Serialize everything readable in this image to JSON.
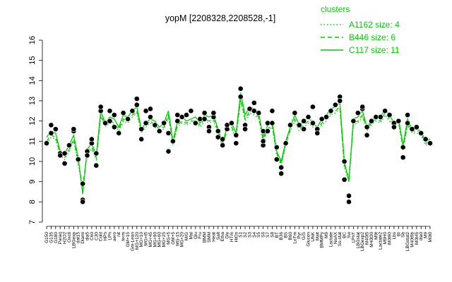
{
  "chart_data": {
    "type": "line",
    "title": "yopM [2208328,2208528,-1]",
    "xlabel": "",
    "ylabel": "",
    "ylim": [
      7,
      16
    ],
    "yticks": [
      7,
      8,
      9,
      10,
      11,
      12,
      13,
      14,
      15,
      16
    ],
    "grid": false,
    "legend": {
      "title": "clusters",
      "placement": "top-right",
      "entries": [
        {
          "label": "A1162 size: 4",
          "style": "dotted"
        },
        {
          "label": "B446 size: 6",
          "style": "dashed"
        },
        {
          "label": "C117 size: 11",
          "style": "solid"
        }
      ]
    },
    "colors": {
      "series": "#00cc00",
      "points": "#000000",
      "legend_text": "#00cc00"
    },
    "x_tick_labels": [
      "G150",
      "G135",
      "G180",
      "Paraq",
      "H2O2",
      "Oxctl",
      "LBGexp",
      "dat15",
      "Diami",
      "dia5",
      "C60",
      "C30",
      "Cold",
      "HPh",
      "LPh",
      "aero",
      "nit",
      "ferm",
      "GM+15",
      "Gm-Lean",
      "MG+120",
      "MG+10",
      "MG+t5",
      "MG+45",
      "MG+90",
      "MG+60",
      "MG+25",
      "MG+5",
      "GM+5",
      "MG-15",
      "MG+20",
      "M/G",
      "Mal",
      "Glu",
      "Fru",
      "BMM",
      "SMM",
      "Heat",
      "Salt",
      "Etha",
      "Gly",
      "HTm",
      "HiOs",
      "S1",
      "S2",
      "S3",
      "S4",
      "S5",
      "S6",
      "S7",
      "S8",
      "BT",
      "B36",
      "BS",
      "B60",
      "LoTm",
      "Pyr",
      "G/S",
      "Glucon",
      "UNK",
      "Malt",
      "BMMPy",
      "M9",
      "Lactate",
      "NoAX",
      "Ss-stat",
      "BC",
      "Sw",
      "LPhT",
      "LBGstat",
      "LBGexp2",
      "M40t5",
      "M40t30",
      "M9t",
      "Lactate2",
      "M9H0",
      "M0t90",
      "Lbs",
      "BI",
      "Sb",
      "LBGstat2",
      "M40t5b",
      "M0t45",
      "dia0",
      "M9",
      "M0t0"
    ],
    "series": [
      {
        "style": "solid",
        "values": [
          11.2,
          11.5,
          11.4,
          10.5,
          10.4,
          10.8,
          11.3,
          10.2,
          8.4,
          10.6,
          10.9,
          10.3,
          12.5,
          11.9,
          12.2,
          12.1,
          11.7,
          12.3,
          12.2,
          12.5,
          12.7,
          11.6,
          11.9,
          12.1,
          12.0,
          11.7,
          11.9,
          12.5,
          11.0,
          12.0,
          12.2,
          12.0,
          12.1,
          12.2,
          11.9,
          12.3,
          12.2,
          12.3,
          11.6,
          10.9,
          11.7,
          11.9,
          11.4,
          13.4,
          12.3,
          12.7,
          12.6,
          12.4,
          11.2,
          11.8,
          12.0,
          10.5,
          10.0,
          11.0,
          11.7,
          12.3,
          11.8,
          12.0,
          12.2,
          11.9,
          11.7,
          12.1,
          12.3,
          12.6,
          12.7,
          12.9,
          10.0,
          9.0,
          12.1,
          12.2,
          12.5,
          11.7,
          12.0,
          12.3,
          12.2,
          12.6,
          12.3,
          11.9,
          12.1,
          10.8,
          12.1,
          11.6,
          11.6,
          11.5,
          11.0,
          11.1
        ]
      },
      {
        "style": "dashed",
        "values": [
          11.0,
          11.3,
          11.2,
          10.4,
          10.2,
          10.6,
          11.1,
          10.0,
          8.7,
          10.5,
          10.7,
          10.2,
          12.3,
          11.8,
          12.0,
          11.9,
          11.6,
          12.1,
          12.0,
          12.3,
          12.5,
          11.5,
          11.8,
          12.0,
          11.8,
          11.6,
          11.7,
          12.3,
          10.9,
          11.8,
          12.0,
          11.9,
          12.0,
          12.0,
          11.8,
          12.1,
          12.0,
          12.1,
          11.5,
          10.8,
          11.6,
          11.7,
          11.3,
          13.1,
          12.1,
          12.5,
          12.4,
          12.2,
          11.1,
          11.6,
          11.8,
          10.4,
          9.9,
          10.9,
          11.6,
          12.1,
          11.6,
          11.8,
          12.0,
          11.8,
          11.6,
          11.9,
          12.1,
          12.4,
          12.5,
          12.7,
          9.8,
          9.2,
          11.9,
          12.0,
          12.3,
          11.6,
          11.9,
          12.1,
          12.0,
          12.4,
          12.1,
          11.8,
          12.0,
          10.7,
          11.9,
          11.5,
          11.5,
          11.4,
          10.9,
          11.0
        ]
      },
      {
        "style": "dotted",
        "values": [
          10.9,
          11.2,
          11.1,
          10.3,
          10.1,
          10.5,
          11.0,
          9.9,
          8.6,
          10.4,
          10.6,
          10.1,
          12.2,
          11.7,
          11.9,
          11.8,
          11.5,
          12.0,
          11.9,
          12.2,
          12.4,
          11.4,
          11.7,
          11.9,
          11.7,
          11.5,
          11.6,
          12.2,
          10.8,
          11.7,
          11.9,
          11.8,
          11.9,
          11.9,
          11.7,
          12.0,
          11.9,
          12.0,
          11.4,
          10.7,
          11.5,
          11.6,
          11.2,
          13.0,
          12.0,
          12.4,
          12.3,
          12.1,
          11.0,
          11.5,
          11.7,
          10.3,
          9.8,
          10.8,
          11.5,
          12.0,
          11.5,
          11.7,
          11.9,
          11.7,
          11.5,
          11.8,
          12.0,
          12.3,
          12.4,
          12.6,
          9.7,
          9.0,
          11.8,
          11.9,
          12.2,
          11.5,
          11.8,
          12.0,
          11.9,
          12.3,
          12.0,
          11.7,
          11.9,
          10.6,
          11.8,
          11.4,
          11.4,
          11.3,
          10.8,
          10.9
        ]
      }
    ],
    "points": [
      [
        0,
        10.9
      ],
      [
        1,
        11.4
      ],
      [
        1,
        11.8
      ],
      [
        2,
        11.6
      ],
      [
        3,
        10.4
      ],
      [
        3,
        10.3
      ],
      [
        4,
        9.9
      ],
      [
        4,
        10.4
      ],
      [
        5,
        10.8
      ],
      [
        6,
        11.5
      ],
      [
        6,
        11.6
      ],
      [
        7,
        10.1
      ],
      [
        8,
        8.9
      ],
      [
        8,
        8.1
      ],
      [
        8,
        8.0
      ],
      [
        9,
        10.5
      ],
      [
        9,
        10.3
      ],
      [
        10,
        10.9
      ],
      [
        10,
        11.1
      ],
      [
        11,
        10.4
      ],
      [
        11,
        9.8
      ],
      [
        12,
        12.5
      ],
      [
        12,
        12.7
      ],
      [
        13,
        11.9
      ],
      [
        14,
        12.5
      ],
      [
        14,
        12.0
      ],
      [
        15,
        12.3
      ],
      [
        15,
        11.7
      ],
      [
        16,
        11.4
      ],
      [
        17,
        12.4
      ],
      [
        18,
        12.1
      ],
      [
        19,
        12.5
      ],
      [
        20,
        13.1
      ],
      [
        20,
        12.8
      ],
      [
        21,
        11.6
      ],
      [
        21,
        11.1
      ],
      [
        22,
        11.9
      ],
      [
        22,
        12.5
      ],
      [
        23,
        12.6
      ],
      [
        23,
        12.2
      ],
      [
        24,
        11.8
      ],
      [
        25,
        11.5
      ],
      [
        26,
        11.9
      ],
      [
        27,
        11.4
      ],
      [
        27,
        10.5
      ],
      [
        28,
        11.0
      ],
      [
        29,
        12.0
      ],
      [
        29,
        12.3
      ],
      [
        30,
        12.2
      ],
      [
        31,
        12.3
      ],
      [
        32,
        12.5
      ],
      [
        33,
        11.9
      ],
      [
        34,
        12.1
      ],
      [
        35,
        12.4
      ],
      [
        35,
        12.1
      ],
      [
        36,
        11.7
      ],
      [
        36,
        11.5
      ],
      [
        37,
        12.2
      ],
      [
        37,
        12.4
      ],
      [
        38,
        11.5
      ],
      [
        38,
        11.2
      ],
      [
        39,
        11.1
      ],
      [
        39,
        10.8
      ],
      [
        40,
        11.6
      ],
      [
        40,
        11.8
      ],
      [
        41,
        11.9
      ],
      [
        42,
        11.3
      ],
      [
        42,
        10.9
      ],
      [
        43,
        13.6
      ],
      [
        43,
        13.2
      ],
      [
        44,
        11.8
      ],
      [
        44,
        11.6
      ],
      [
        45,
        12.6
      ],
      [
        46,
        12.9
      ],
      [
        46,
        12.5
      ],
      [
        47,
        12.4
      ],
      [
        48,
        11.5
      ],
      [
        48,
        10.8
      ],
      [
        48,
        11.0
      ],
      [
        49,
        11.9
      ],
      [
        49,
        11.5
      ],
      [
        50,
        12.5
      ],
      [
        50,
        11.9
      ],
      [
        51,
        10.7
      ],
      [
        51,
        10.1
      ],
      [
        52,
        9.4
      ],
      [
        52,
        9.7
      ],
      [
        53,
        10.9
      ],
      [
        54,
        11.8
      ],
      [
        55,
        12.4
      ],
      [
        56,
        11.8
      ],
      [
        57,
        12.0
      ],
      [
        57,
        11.6
      ],
      [
        58,
        12.2
      ],
      [
        59,
        11.9
      ],
      [
        59,
        12.7
      ],
      [
        60,
        11.6
      ],
      [
        60,
        11.4
      ],
      [
        61,
        12.1
      ],
      [
        62,
        12.2
      ],
      [
        63,
        12.5
      ],
      [
        64,
        12.8
      ],
      [
        65,
        13.2
      ],
      [
        65,
        13.0
      ],
      [
        66,
        10.0
      ],
      [
        66,
        9.1
      ],
      [
        67,
        8.3
      ],
      [
        67,
        8.0
      ],
      [
        68,
        12.0
      ],
      [
        69,
        12.4
      ],
      [
        70,
        12.6
      ],
      [
        70,
        12.7
      ],
      [
        71,
        11.7
      ],
      [
        71,
        11.3
      ],
      [
        72,
        12.0
      ],
      [
        73,
        12.2
      ],
      [
        74,
        12.2
      ],
      [
        75,
        12.5
      ],
      [
        76,
        12.3
      ],
      [
        77,
        11.9
      ],
      [
        77,
        11.7
      ],
      [
        78,
        12.0
      ],
      [
        79,
        10.2
      ],
      [
        79,
        10.7
      ],
      [
        80,
        12.3
      ],
      [
        80,
        11.9
      ],
      [
        81,
        11.6
      ],
      [
        82,
        11.7
      ],
      [
        83,
        11.4
      ],
      [
        84,
        11.1
      ],
      [
        85,
        10.9
      ]
    ]
  }
}
